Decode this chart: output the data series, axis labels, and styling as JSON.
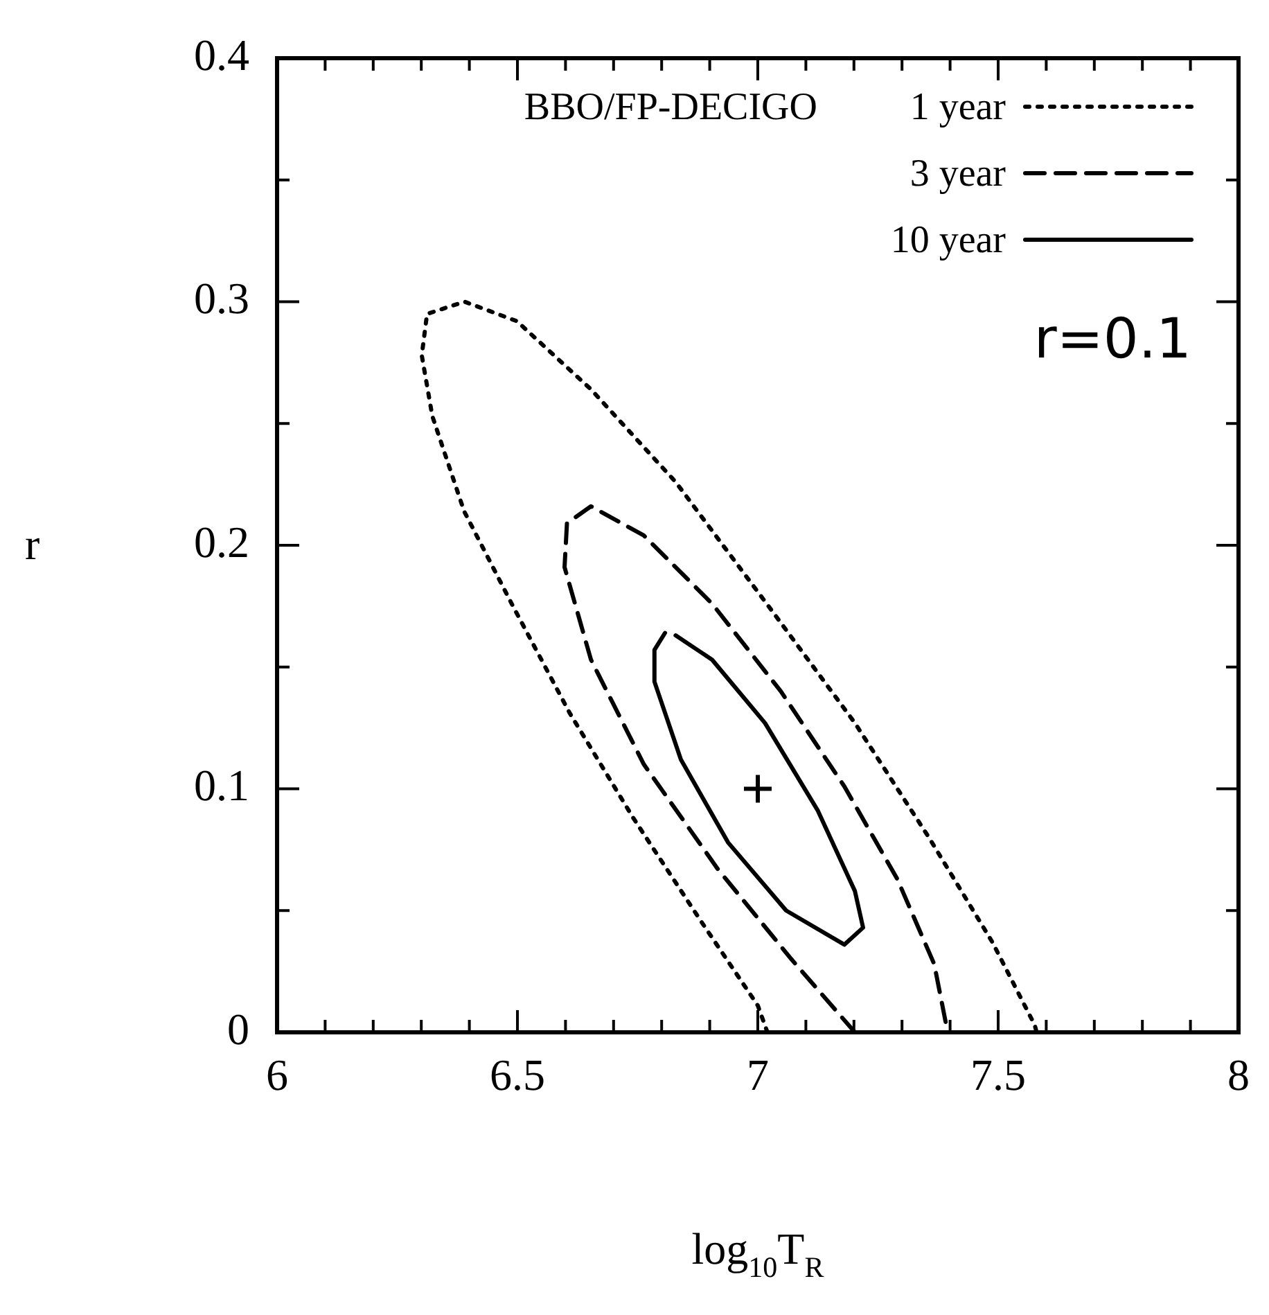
{
  "chart_data": {
    "type": "line",
    "xlabel": "log$_{10}$T$_{R}$",
    "ylabel": "r",
    "legend_title": "BBO/FP-DECIGO",
    "legend": "top right",
    "grid": false,
    "marker": "none",
    "xlim": [
      6,
      8
    ],
    "ylim": [
      0,
      0.4
    ],
    "xticks": [
      6,
      {
        "value": 6.1,
        "label": null
      },
      {
        "value": 6.2,
        "label": null
      },
      {
        "value": 6.3,
        "label": null
      },
      {
        "value": 6.4,
        "label": null
      },
      6.5,
      {
        "value": 6.6,
        "label": null
      },
      {
        "value": 6.7,
        "label": null
      },
      {
        "value": 6.8,
        "label": null
      },
      {
        "value": 6.9,
        "label": null
      },
      7,
      {
        "value": 7.1,
        "label": null
      },
      {
        "value": 7.2,
        "label": null
      },
      {
        "value": 7.3,
        "label": null
      },
      {
        "value": 7.4,
        "label": null
      },
      7.5,
      {
        "value": 7.6,
        "label": null
      },
      {
        "value": 7.7,
        "label": null
      },
      {
        "value": 7.8,
        "label": null
      },
      {
        "value": 7.9,
        "label": null
      },
      8
    ],
    "yticks": [
      0,
      {
        "value": 0.05,
        "label": null
      },
      0.1,
      {
        "value": 0.15,
        "label": null
      },
      0.2,
      {
        "value": 0.25,
        "label": null
      },
      0.3,
      {
        "value": 0.35,
        "label": null
      },
      0.4
    ],
    "annotations": [
      "r=0.1"
    ],
    "series": [
      {
        "name": "1 year",
        "color": "#000000",
        "line_style": "dotted",
        "x": [
          7.02,
          7.0,
          6.884,
          6.741,
          6.609,
          6.488,
          6.389,
          6.323,
          6.301,
          6.312,
          6.39,
          6.499,
          6.653,
          6.829,
          7.026,
          7.202,
          7.356,
          7.488,
          7.576,
          7.58
        ],
        "values": [
          0,
          0.011,
          0.045,
          0.088,
          0.131,
          0.176,
          0.214,
          0.253,
          0.278,
          0.295,
          0.3,
          0.292,
          0.264,
          0.226,
          0.174,
          0.127,
          0.08,
          0.037,
          0.003,
          0
        ]
      },
      {
        "name": "3 year",
        "color": "#000000",
        "line_style": "dashed",
        "x": [
          7.202,
          7.07,
          6.917,
          6.763,
          6.653,
          6.598,
          6.603,
          6.653,
          6.763,
          6.905,
          7.048,
          7.18,
          7.29,
          7.367,
          7.395
        ],
        "values": [
          0,
          0.03,
          0.067,
          0.11,
          0.153,
          0.191,
          0.209,
          0.216,
          0.204,
          0.176,
          0.14,
          0.101,
          0.063,
          0.028,
          0
        ]
      },
      {
        "name": "10 year",
        "color": "#000000",
        "line_style": "solid",
        "x": [
          6.807,
          6.785,
          6.785,
          6.84,
          6.938,
          7.059,
          7.18,
          7.219,
          7.202,
          7.125,
          7.015,
          6.905,
          6.829
        ],
        "values": [
          0.164,
          0.157,
          0.144,
          0.112,
          0.078,
          0.05,
          0.036,
          0.043,
          0.058,
          0.091,
          0.127,
          0.153,
          0.163
        ]
      },
      {
        "type": "scatter",
        "marker": "cross",
        "color": "#000000",
        "x": [
          7
        ],
        "values": [
          0.1
        ]
      }
    ]
  }
}
